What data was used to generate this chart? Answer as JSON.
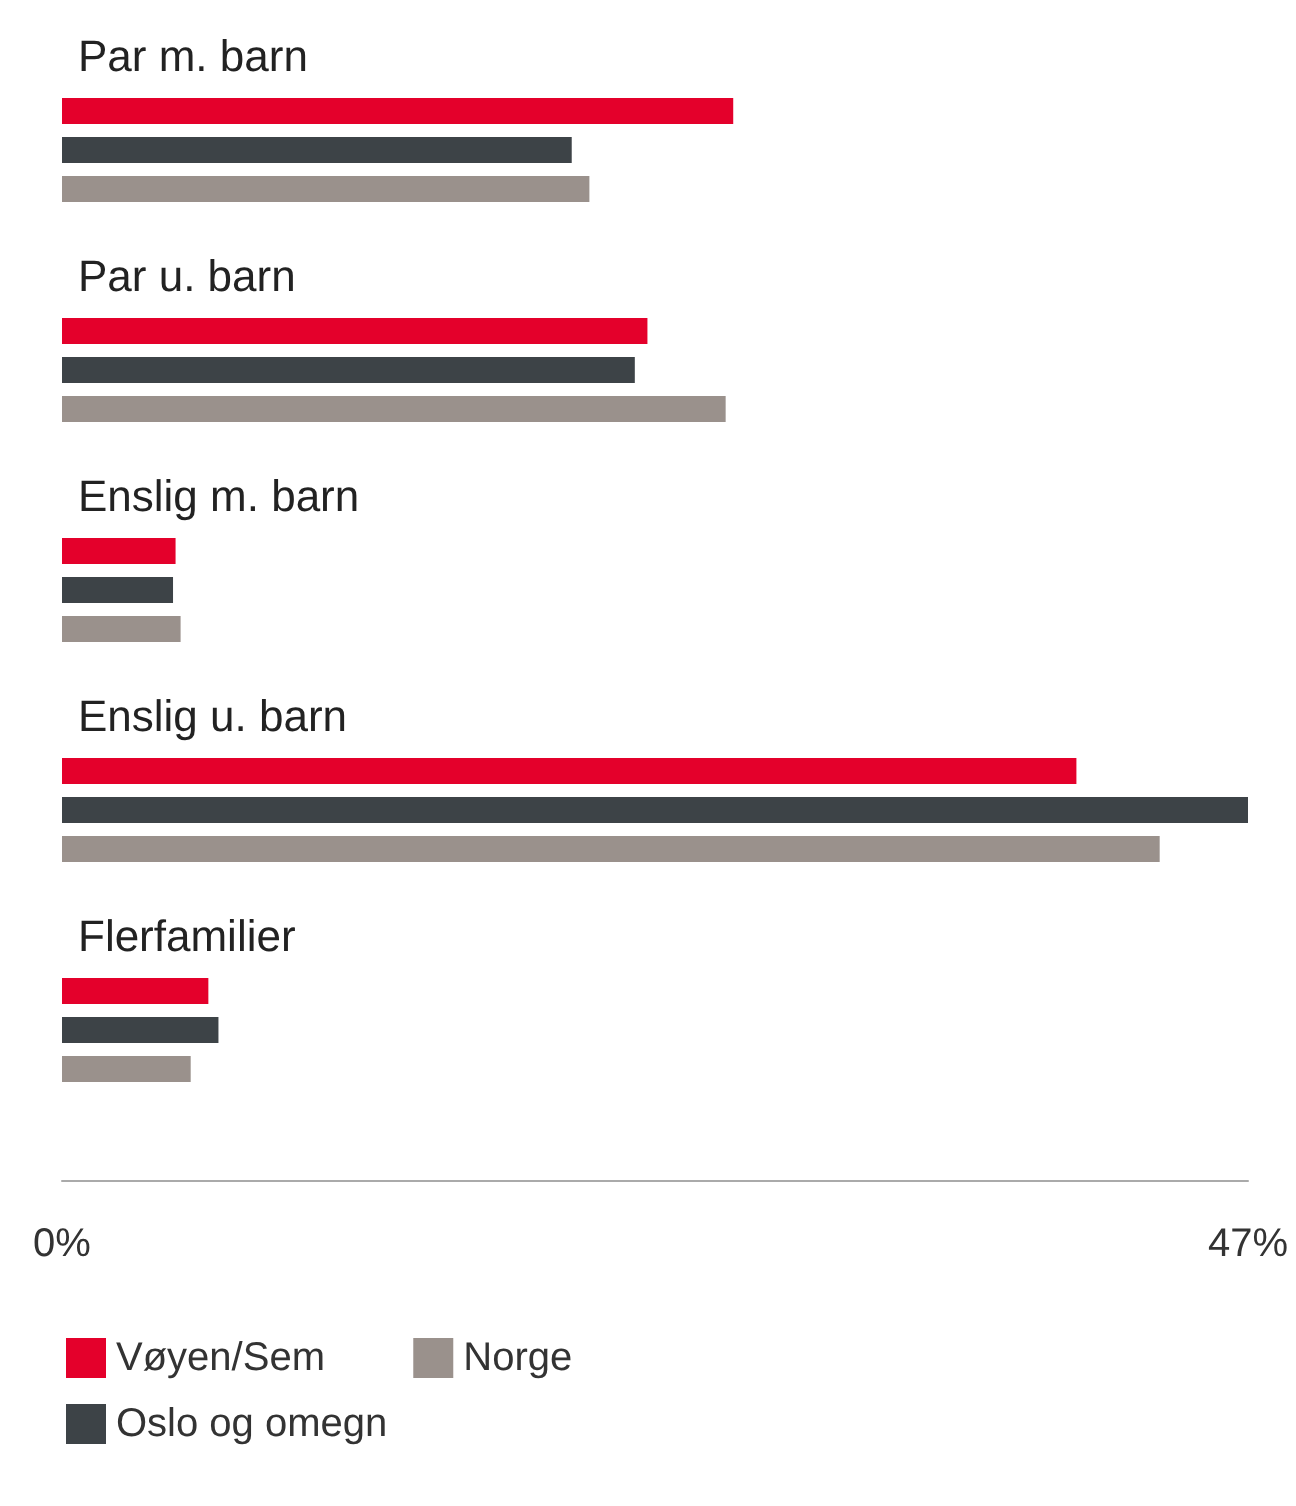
{
  "chart_data": {
    "type": "bar",
    "orientation": "horizontal",
    "categories": [
      "Par m. barn",
      "Par u. barn",
      "Enslig m. barn",
      "Enslig u. barn",
      "Flerfamilier"
    ],
    "series": [
      {
        "name": "Vøyen/Sem",
        "color": "#e4002b",
        "values": [
          26.6,
          23.2,
          4.5,
          40.2,
          5.8
        ]
      },
      {
        "name": "Oslo og omegn",
        "color": "#3d4347",
        "values": [
          20.2,
          22.7,
          4.4,
          47.0,
          6.2
        ]
      },
      {
        "name": "Norge",
        "color": "#9a918c",
        "values": [
          20.9,
          26.3,
          4.7,
          43.5,
          5.1
        ]
      }
    ],
    "xlim": [
      0,
      47
    ],
    "xticks": [
      {
        "value": 0,
        "label": "0%"
      },
      {
        "value": 47,
        "label": "47%"
      }
    ],
    "grid": false,
    "legend": "bottom"
  }
}
